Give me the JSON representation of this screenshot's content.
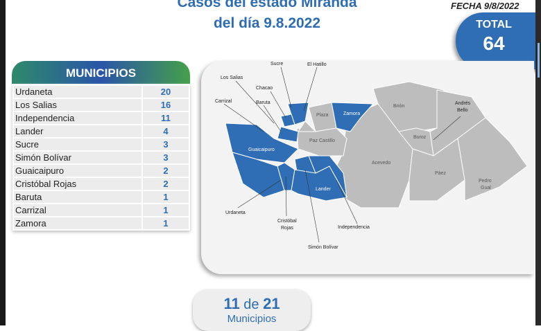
{
  "header": {
    "title_line1": "Casos del estado Miranda",
    "title_line2": "del día 9.8.2022",
    "fecha": "FECHA 9/8/2022"
  },
  "total": {
    "label": "TOTAL",
    "value": "64"
  },
  "municipios": {
    "heading": "MUNICIPIOS",
    "rows": [
      {
        "name": "Urdaneta",
        "count": "20"
      },
      {
        "name": "Los Salias",
        "count": "16"
      },
      {
        "name": "Independencia",
        "count": "11"
      },
      {
        "name": "Lander",
        "count": "4"
      },
      {
        "name": "Sucre",
        "count": "3"
      },
      {
        "name": "Simón Bolívar",
        "count": "3"
      },
      {
        "name": "Guaicaipuro",
        "count": "2"
      },
      {
        "name": "Cristóbal Rojas",
        "count": "2"
      },
      {
        "name": "Baruta",
        "count": "1"
      },
      {
        "name": "Carrizal",
        "count": "1"
      },
      {
        "name": "Zamora",
        "count": "1"
      }
    ]
  },
  "map": {
    "colors": {
      "affected": "#2f6db5",
      "unaffected": "#bdbdbd"
    },
    "labels": {
      "sucre": "Sucre",
      "el_hatillo": "El Hatillo",
      "los_salias": "Los Salias",
      "chacao": "Chacao",
      "carrizal": "Carrizal",
      "baruta": "Baruta",
      "andres_bello_1": "Andrés",
      "andres_bello_2": "Bello",
      "urdaneta": "Urdaneta",
      "cristobal_rojas_1": "Cristóbal",
      "cristobal_rojas_2": "Rojas",
      "independencia": "Independencia",
      "simon_bolivar": "Simón Bolívar",
      "plaza": "Plaza",
      "zamora": "Zamora",
      "brion": "Brión",
      "buroz": "Buroz",
      "paz_castillo": "Paz Castillo",
      "guaicaipuro": "Guaicaipuro",
      "acevedo": "Acevedo",
      "paez": "Páez",
      "pedro_gual_1": "Pedro",
      "pedro_gual_2": "Gual",
      "lander": "Lander"
    }
  },
  "summary": {
    "affected": "11",
    "de": "de",
    "total": "21",
    "unit": "Municipios"
  }
}
